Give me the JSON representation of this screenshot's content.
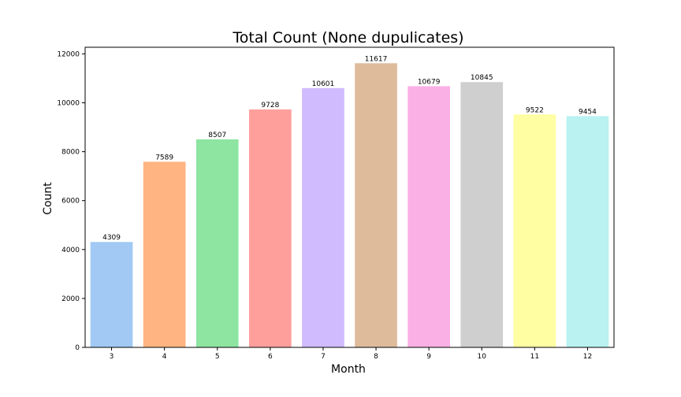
{
  "chart_data": {
    "type": "bar",
    "title": "Total Count (None dupulicates)",
    "xlabel": "Month",
    "ylabel": "Count",
    "categories": [
      "3",
      "4",
      "5",
      "6",
      "7",
      "8",
      "9",
      "10",
      "11",
      "12"
    ],
    "values": [
      4309,
      7589,
      8507,
      9728,
      10601,
      11617,
      10679,
      10845,
      9522,
      9454
    ],
    "data_labels": [
      "4309",
      "7589",
      "8507",
      "9728",
      "10601",
      "11617",
      "10679",
      "10845",
      "9522",
      "9454"
    ],
    "ylim": [
      0,
      12270
    ],
    "yticks": [
      0,
      2000,
      4000,
      6000,
      8000,
      10000,
      12000
    ],
    "ytick_labels": [
      "0",
      "2000",
      "4000",
      "6000",
      "8000",
      "10000",
      "12000"
    ],
    "colors": [
      "#a1c9f4",
      "#ffb482",
      "#8de5a1",
      "#ff9f9b",
      "#d0bbff",
      "#debb9b",
      "#fab0e4",
      "#cfcfcf",
      "#fffea3",
      "#b9f2f0"
    ],
    "grid": false,
    "legend": "none"
  }
}
